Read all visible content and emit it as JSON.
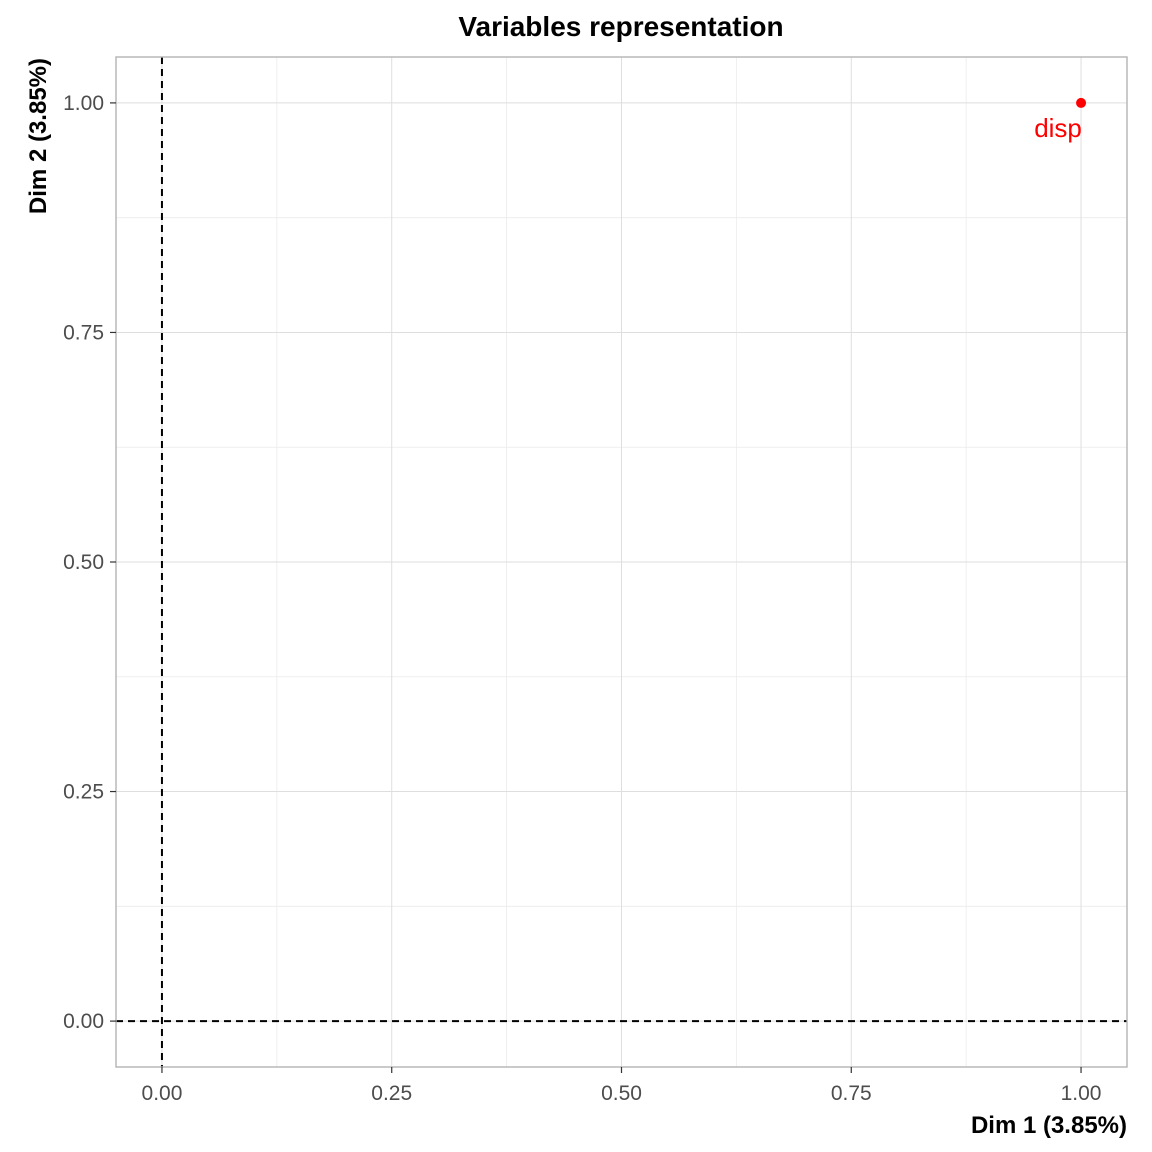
{
  "chart_data": {
    "type": "scatter",
    "title": "Variables representation",
    "xlabel": "Dim 1 (3.85%)",
    "ylabel": "Dim 2 (3.85%)",
    "xlim": [
      -0.05,
      1.05
    ],
    "ylim": [
      -0.05,
      1.05
    ],
    "x_ticks": [
      0,
      0.25,
      0.5,
      0.75,
      1
    ],
    "x_tick_labels": [
      "0.00",
      "0.25",
      "0.50",
      "0.75",
      "1.00"
    ],
    "y_ticks": [
      0,
      0.25,
      0.5,
      0.75,
      1
    ],
    "y_tick_labels": [
      "0.00",
      "0.25",
      "0.50",
      "0.75",
      "1.00"
    ],
    "grid": true,
    "reference_lines": {
      "x": 0,
      "y": 0,
      "style": "dashed"
    },
    "points": [
      {
        "label": "disp",
        "x": 1.0,
        "y": 1.0,
        "color": "#ff0000"
      }
    ]
  }
}
